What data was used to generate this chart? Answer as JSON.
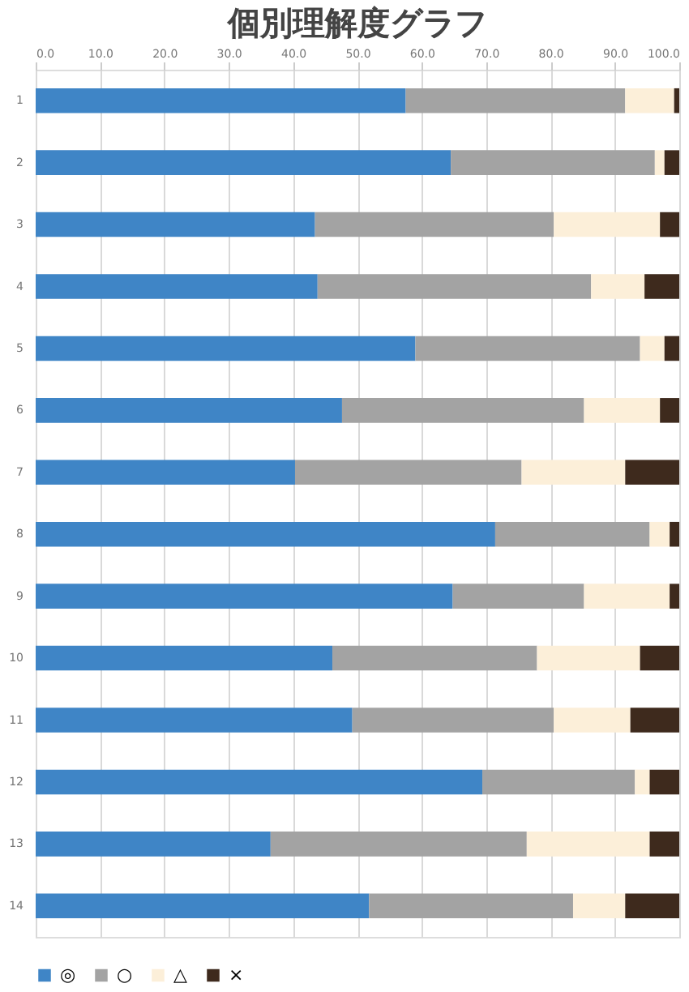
{
  "chart_data": {
    "type": "bar",
    "orientation": "horizontal",
    "stacked": true,
    "title": "個別理解度グラフ",
    "categories": [
      "1",
      "2",
      "3",
      "4",
      "5",
      "6",
      "7",
      "8",
      "9",
      "10",
      "11",
      "12",
      "13",
      "14"
    ],
    "series": [
      {
        "name": "◎",
        "color": "#3f85c6",
        "values": [
          57.5,
          64.5,
          43.4,
          43.8,
          59.0,
          47.6,
          40.3,
          71.4,
          64.8,
          46.1,
          49.2,
          69.4,
          36.5,
          51.8
        ]
      },
      {
        "name": "○",
        "color": "#a3a3a3",
        "values": [
          34.1,
          31.7,
          37.1,
          42.5,
          34.9,
          37.6,
          35.2,
          24.0,
          20.4,
          31.8,
          31.3,
          23.7,
          39.8,
          31.7
        ]
      },
      {
        "name": "△",
        "color": "#fcefd9",
        "values": [
          7.6,
          1.5,
          16.5,
          8.3,
          3.8,
          11.8,
          16.1,
          3.1,
          13.3,
          16.0,
          11.9,
          2.3,
          19.1,
          8.1
        ]
      },
      {
        "name": "×",
        "color": "#3e2a1d",
        "values": [
          0.8,
          2.3,
          3.0,
          5.4,
          2.3,
          3.0,
          8.4,
          1.5,
          1.5,
          6.1,
          7.6,
          4.6,
          4.6,
          8.4
        ]
      }
    ],
    "xlim": [
      0,
      100
    ],
    "xticks": [
      {
        "value": 0,
        "label": "0.0"
      },
      {
        "value": 10,
        "label": "10.0"
      },
      {
        "value": 20,
        "label": "20.0"
      },
      {
        "value": 30,
        "label": "30.0"
      },
      {
        "value": 40,
        "label": "40.0"
      },
      {
        "value": 50,
        "label": "50.0"
      },
      {
        "value": 60,
        "label": "60.0"
      },
      {
        "value": 70,
        "label": "70.0"
      },
      {
        "value": 80,
        "label": "80.0"
      },
      {
        "value": 90,
        "label": "90.0"
      },
      {
        "value": 100,
        "label": "100.0"
      }
    ],
    "grid": "x",
    "legend": "bottom"
  }
}
